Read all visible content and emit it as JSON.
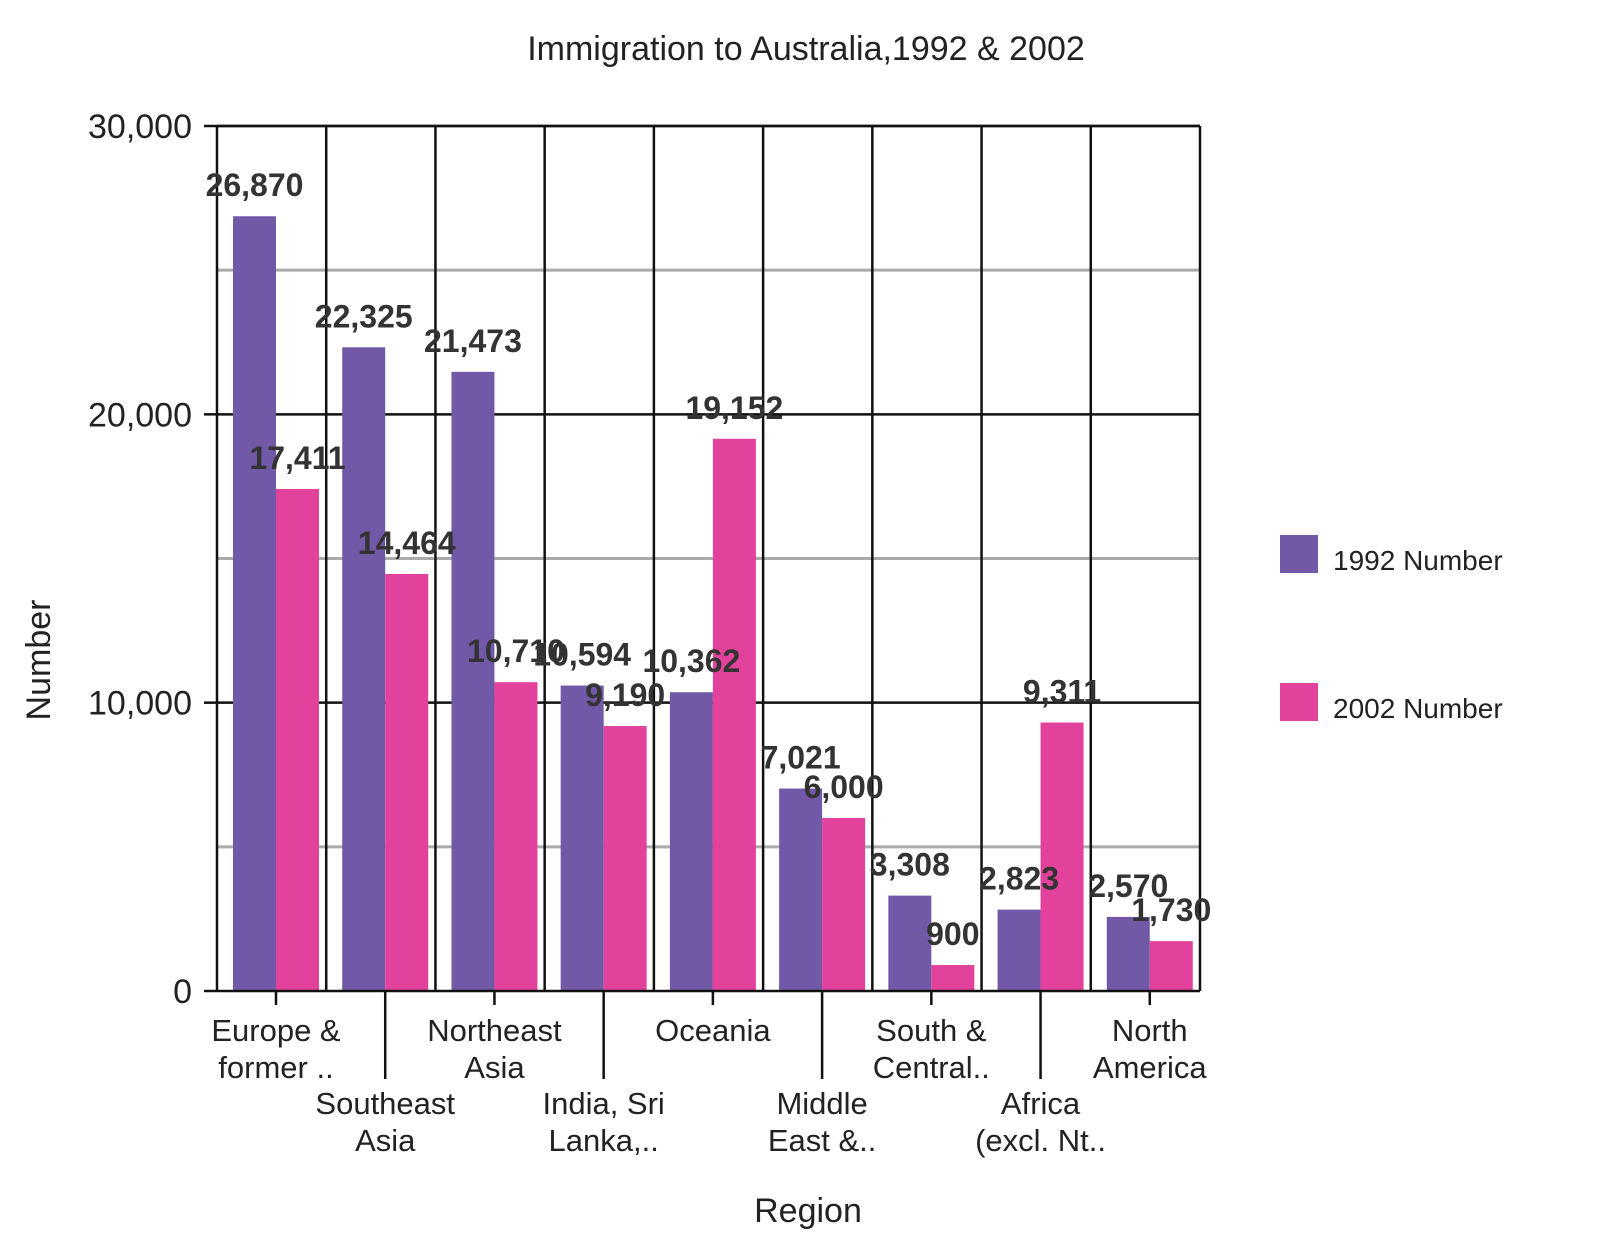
{
  "chart_data": {
    "type": "bar",
    "title": "Immigration to Australia,1992 &  2002",
    "xlabel": "Region",
    "ylabel": "Number",
    "ylim": [
      0,
      30000
    ],
    "yticks": [
      0,
      10000,
      20000,
      30000
    ],
    "ytick_labels": [
      "0",
      "10,000",
      "20,000",
      "30,000"
    ],
    "minor_gridlines": [
      5000,
      15000,
      25000
    ],
    "grid": true,
    "legend_position": "right",
    "categories": [
      [
        "Europe &",
        "former .."
      ],
      [
        "Southeast",
        "Asia"
      ],
      [
        "Northeast",
        "Asia"
      ],
      [
        "India, Sri",
        "Lanka,.."
      ],
      [
        "Oceania"
      ],
      [
        "Middle",
        "East &.."
      ],
      [
        "South &",
        "Central.."
      ],
      [
        "Africa",
        "(excl. Nt.."
      ],
      [
        "North",
        "America"
      ]
    ],
    "series": [
      {
        "name": "1992 Number",
        "color": "#7159a8",
        "values": [
          26870,
          22325,
          21473,
          10594,
          10362,
          7021,
          3308,
          2823,
          2570
        ],
        "labels": [
          "26,870",
          "22,325",
          "21,473",
          "10,594",
          "10,362",
          "7,021",
          "3,308",
          "2,823",
          "2,570"
        ]
      },
      {
        "name": "2002 Number",
        "color": "#e2429b",
        "values": [
          17411,
          14464,
          10710,
          9190,
          19152,
          6000,
          900,
          9311,
          1730
        ],
        "labels": [
          "17,411",
          "14,464",
          "10,710",
          "9,190",
          "19,152",
          "6,000",
          "900",
          "9,311",
          "1,730"
        ]
      }
    ]
  }
}
